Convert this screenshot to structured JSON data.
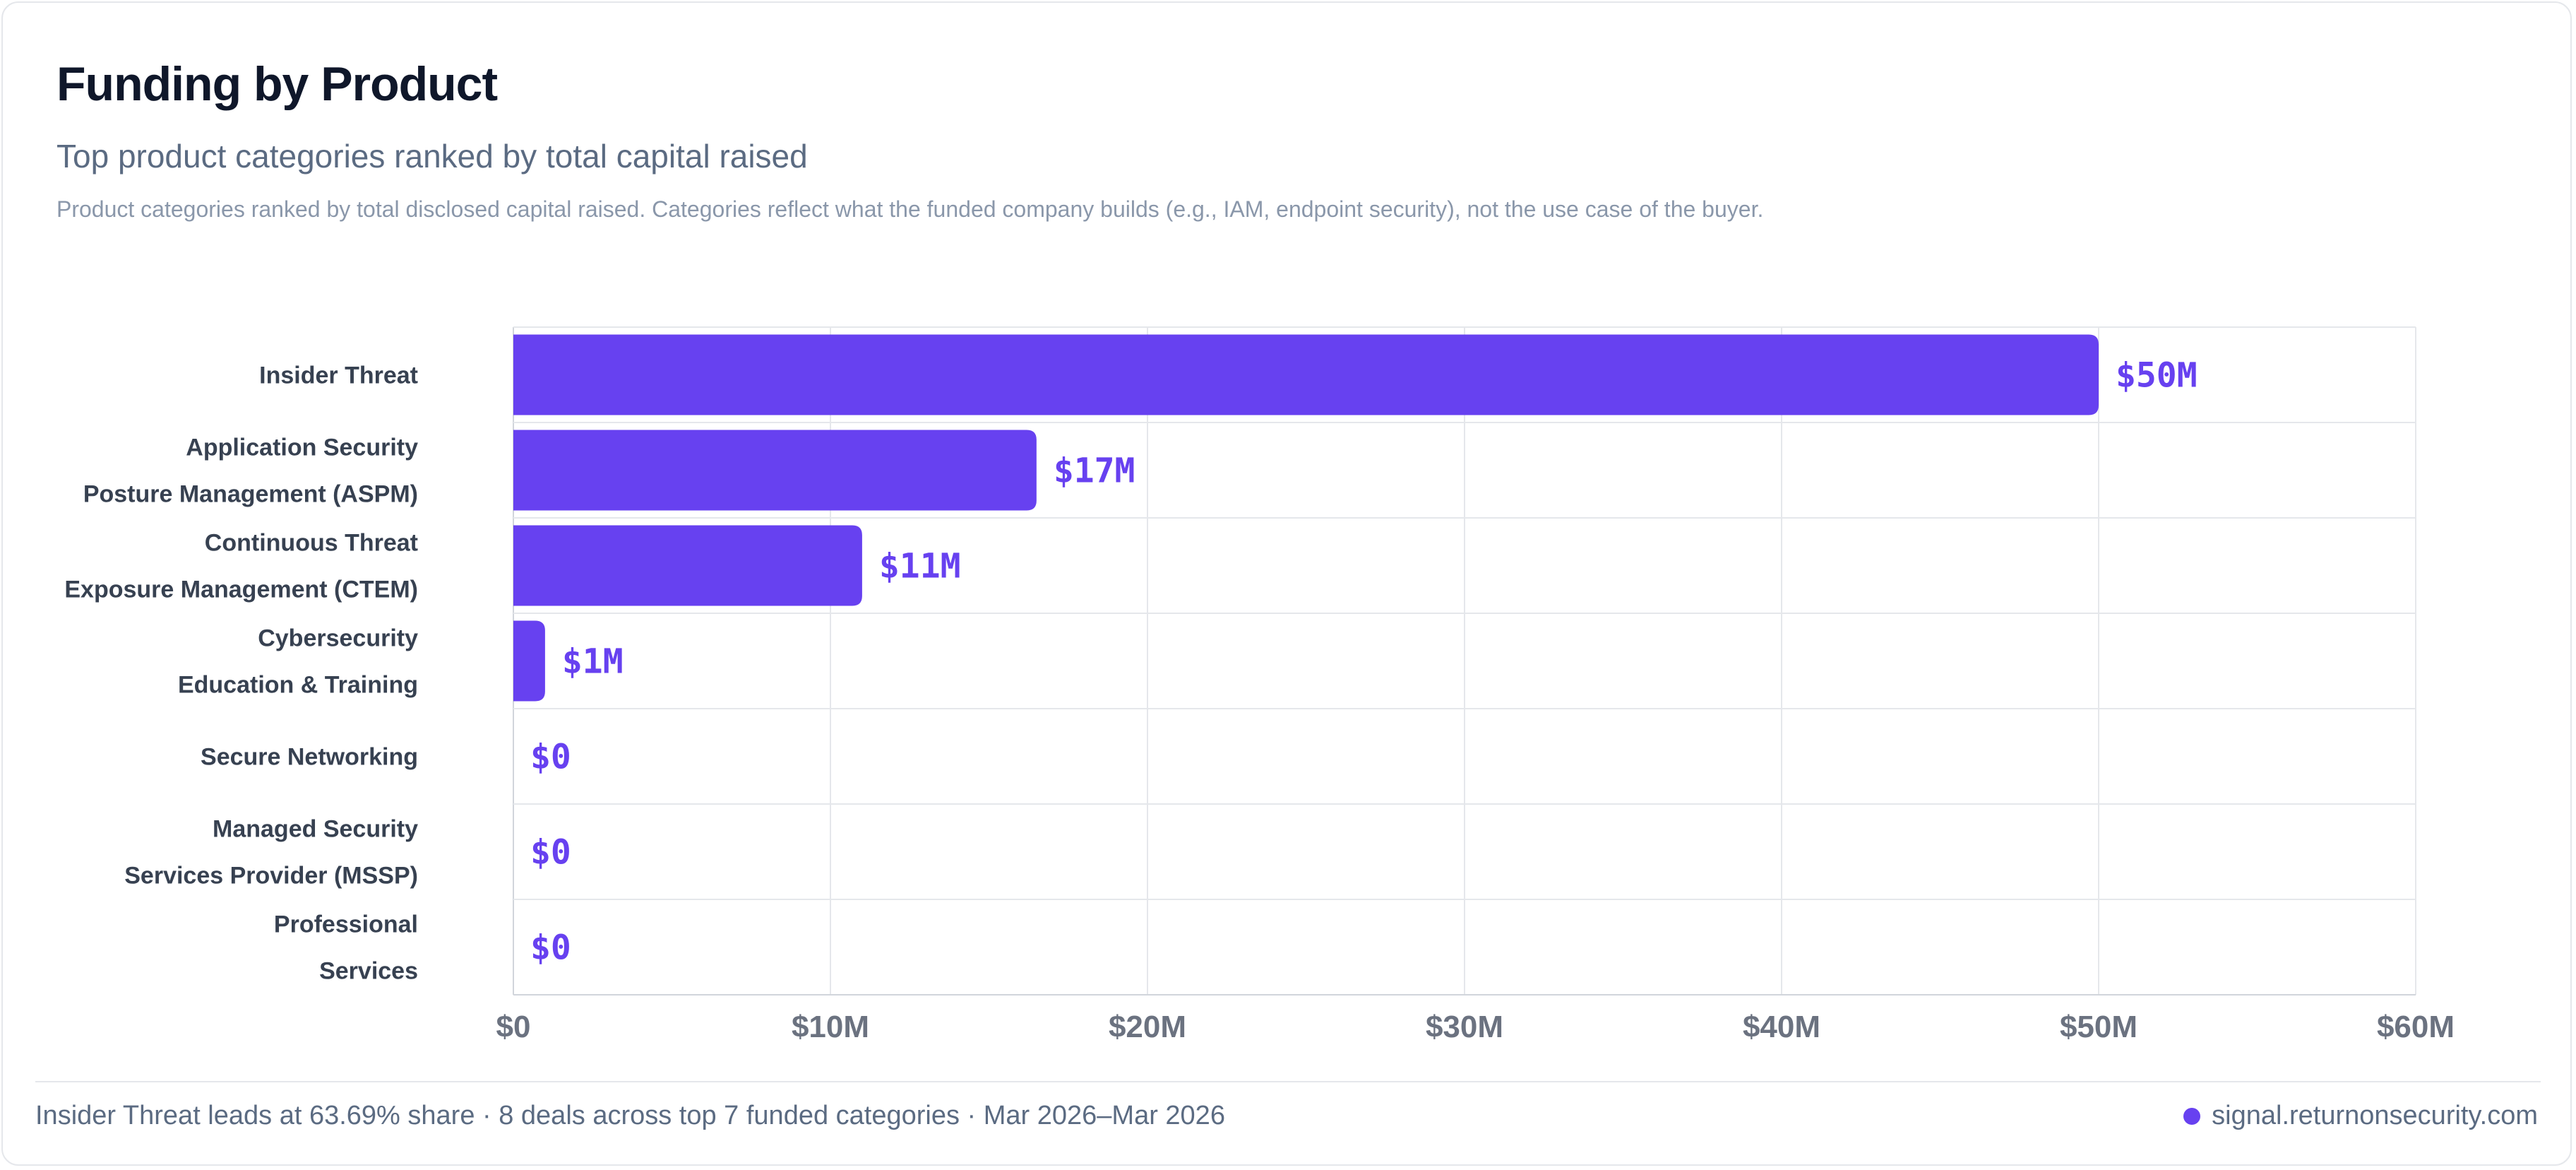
{
  "header": {
    "title": "Funding by Product",
    "subtitle": "Top product categories ranked by total capital raised",
    "description": "Product categories ranked by total disclosed capital raised. Categories reflect what the funded company builds (e.g., IAM, endpoint security), not the use case of the buyer."
  },
  "chart_data": {
    "type": "bar",
    "orientation": "horizontal",
    "categories": [
      [
        "Insider Threat"
      ],
      [
        "Application Security",
        "Posture Management (ASPM)"
      ],
      [
        "Continuous Threat",
        "Exposure Management (CTEM)"
      ],
      [
        "Cybersecurity",
        "Education & Training"
      ],
      [
        "Secure Networking"
      ],
      [
        "Managed Security",
        "Services Provider (MSSP)"
      ],
      [
        "Professional",
        "Services"
      ]
    ],
    "values": [
      50,
      16.5,
      11,
      1,
      0,
      0,
      0
    ],
    "value_labels": [
      "$50M",
      "$17M",
      "$11M",
      "$1M",
      "$0",
      "$0",
      "$0"
    ],
    "unit": "$M",
    "xlim": [
      0,
      60
    ],
    "xticks": [
      0,
      10,
      20,
      30,
      40,
      50,
      60
    ],
    "xtick_labels": [
      "$0",
      "$10M",
      "$20M",
      "$30M",
      "$40M",
      "$50M",
      "$60M"
    ],
    "grid": true,
    "bar_color": "#6741f0",
    "label_color": "#6741f0"
  },
  "footer": {
    "summary": "Insider Threat leads at 63.69% share · 8 deals across top 7 funded categories · Mar 2026–Mar 2026",
    "source": "signal.returnonsecurity.com"
  }
}
